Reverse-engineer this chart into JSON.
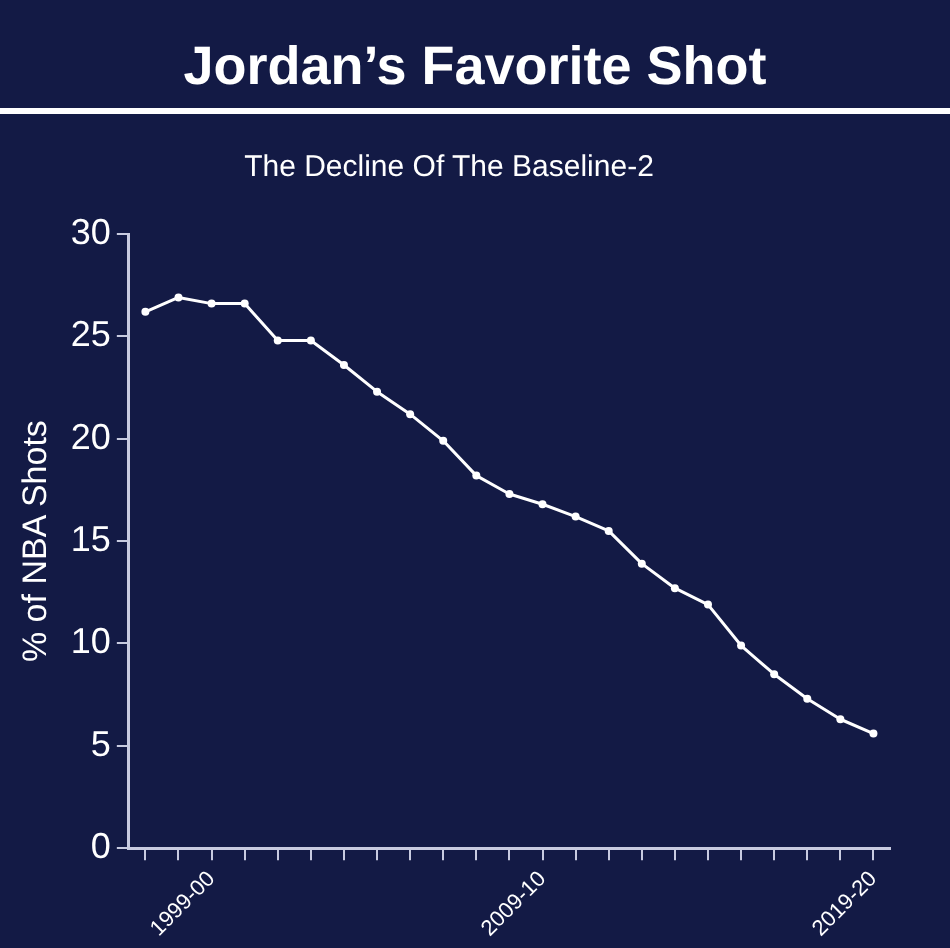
{
  "chart_data": {
    "type": "line",
    "title": "Jordan’s Favorite Shot",
    "subtitle": "The Decline Of The Baseline-2",
    "ylabel": "% of NBA Shots",
    "categories": [
      null,
      null,
      "1999-00",
      null,
      null,
      null,
      null,
      null,
      null,
      null,
      null,
      null,
      "2009-10",
      null,
      null,
      null,
      null,
      null,
      null,
      null,
      null,
      null,
      "2019-20"
    ],
    "series": [
      {
        "color": "#ffffff",
        "values": [
          26.2,
          26.9,
          26.6,
          26.6,
          24.8,
          24.8,
          23.6,
          22.3,
          21.2,
          19.9,
          18.2,
          17.3,
          16.8,
          16.2,
          15.5,
          13.9,
          12.7,
          11.9,
          9.9,
          8.5,
          7.3,
          6.3,
          5.6
        ]
      }
    ],
    "ylim": [
      0,
      30
    ],
    "yticks": [
      0,
      5,
      10,
      15,
      20,
      25,
      30
    ],
    "grid": false,
    "legend": false,
    "marker": "circle",
    "line_style": "solid"
  }
}
